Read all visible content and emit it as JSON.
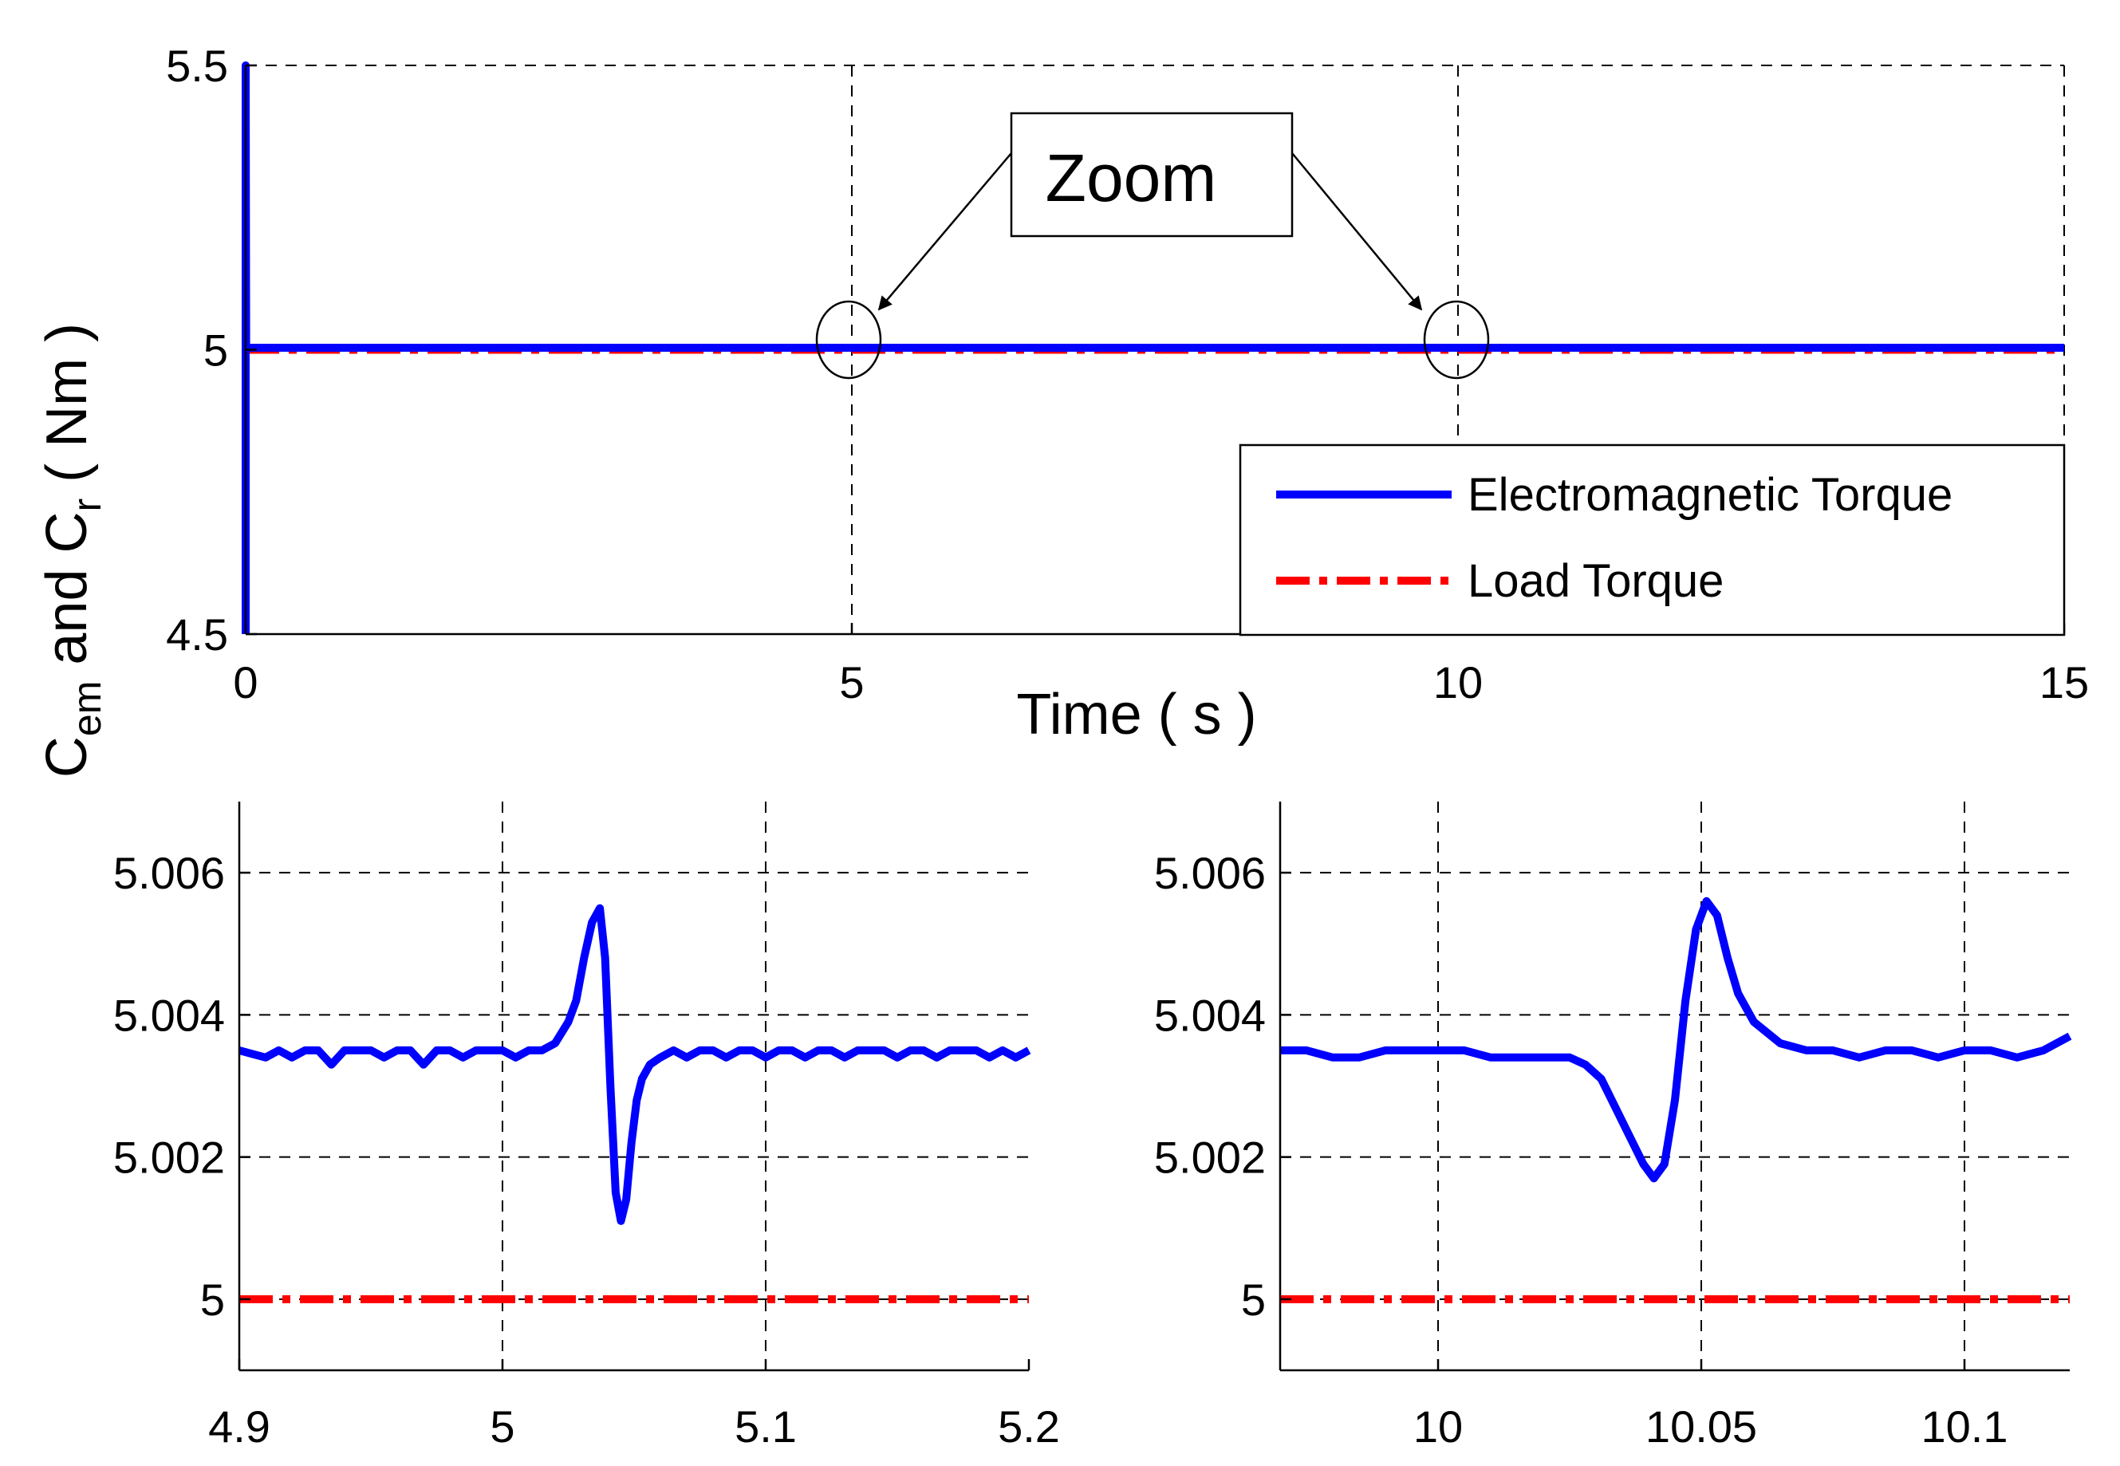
{
  "ylabel_parts": {
    "c1": "C",
    "sub1": "em",
    "and": " and C",
    "sub2": "r",
    "unit": " ( Nm )"
  },
  "chart_data": [
    {
      "type": "line",
      "xlabel": "Time ( s )",
      "ylabel": "C_em and C_r ( Nm )",
      "xlim": [
        0,
        15
      ],
      "ylim": [
        4.5,
        5.5
      ],
      "xticks": [
        0,
        5,
        10,
        15
      ],
      "xticklabels": [
        "0",
        "5",
        "10",
        "15"
      ],
      "yticks": [
        4.5,
        5,
        5.5
      ],
      "yticklabels": [
        "4.5",
        "5",
        "5.5"
      ],
      "grid": true,
      "legend_position": "bottom-right",
      "series": [
        {
          "name": "Electromagnetic Torque",
          "color": "#0000ff",
          "style": "solid",
          "x": [
            0,
            0,
            0.004,
            15
          ],
          "y": [
            4.5,
            5.5,
            5.0035,
            5.0035
          ]
        },
        {
          "name": "Load Torque",
          "color": "#ff0000",
          "style": "dash-dot",
          "x": [
            0,
            15
          ],
          "y": [
            5,
            5
          ]
        }
      ],
      "annotation": {
        "text": "Zoom",
        "targets": [
          [
            5,
            5
          ],
          [
            10,
            5
          ]
        ]
      }
    },
    {
      "type": "line",
      "xlim": [
        4.9,
        5.2
      ],
      "ylim": [
        4.999,
        5.007
      ],
      "xticks": [
        4.9,
        5,
        5.1,
        5.2
      ],
      "xticklabels": [
        "4.9",
        "5",
        "5.1",
        "5.2"
      ],
      "yticks": [
        5,
        5.002,
        5.004,
        5.006
      ],
      "yticklabels": [
        "5",
        "5.002",
        "5.004",
        "5.006"
      ],
      "grid": true,
      "series": [
        {
          "name": "Electromagnetic Torque",
          "color": "#0000ff",
          "style": "solid",
          "x": [
            4.9,
            4.905,
            4.91,
            4.915,
            4.92,
            4.925,
            4.93,
            4.935,
            4.94,
            4.945,
            4.95,
            4.955,
            4.96,
            4.965,
            4.97,
            4.975,
            4.98,
            4.985,
            4.99,
            4.995,
            5.0,
            5.005,
            5.01,
            5.015,
            5.02,
            5.025,
            5.028,
            5.031,
            5.034,
            5.037,
            5.039,
            5.041,
            5.043,
            5.045,
            5.047,
            5.049,
            5.051,
            5.053,
            5.056,
            5.06,
            5.065,
            5.07,
            5.075,
            5.08,
            5.085,
            5.09,
            5.095,
            5.1,
            5.105,
            5.11,
            5.115,
            5.12,
            5.125,
            5.13,
            5.135,
            5.14,
            5.145,
            5.15,
            5.155,
            5.16,
            5.165,
            5.17,
            5.175,
            5.18,
            5.185,
            5.19,
            5.195,
            5.2
          ],
          "y": [
            5.0035,
            5.00345,
            5.0034,
            5.0035,
            5.0034,
            5.0035,
            5.0035,
            5.0033,
            5.0035,
            5.0035,
            5.0035,
            5.0034,
            5.0035,
            5.0035,
            5.0033,
            5.0035,
            5.0035,
            5.0034,
            5.0035,
            5.0035,
            5.0035,
            5.0034,
            5.0035,
            5.0035,
            5.0036,
            5.0039,
            5.0042,
            5.0048,
            5.0053,
            5.0055,
            5.0048,
            5.003,
            5.0015,
            5.0011,
            5.0014,
            5.0022,
            5.0028,
            5.0031,
            5.0033,
            5.0034,
            5.0035,
            5.0034,
            5.0035,
            5.0035,
            5.0034,
            5.0035,
            5.0035,
            5.0034,
            5.0035,
            5.0035,
            5.0034,
            5.0035,
            5.0035,
            5.0034,
            5.0035,
            5.0035,
            5.0035,
            5.0034,
            5.0035,
            5.0035,
            5.0034,
            5.0035,
            5.0035,
            5.0035,
            5.0034,
            5.0035,
            5.0034,
            5.0035
          ]
        },
        {
          "name": "Load Torque",
          "color": "#ff0000",
          "style": "dash-dot",
          "x": [
            4.9,
            5.2
          ],
          "y": [
            5,
            5
          ]
        }
      ]
    },
    {
      "type": "line",
      "xlim": [
        9.97,
        10.12
      ],
      "ylim": [
        4.999,
        5.007
      ],
      "xticks": [
        10,
        10.05,
        10.1
      ],
      "xticklabels": [
        "10",
        "10.05",
        "10.1"
      ],
      "yticks": [
        5,
        5.002,
        5.004,
        5.006
      ],
      "yticklabels": [
        "5",
        "5.002",
        "5.004",
        "5.006"
      ],
      "grid": true,
      "series": [
        {
          "name": "Electromagnetic Torque",
          "color": "#0000ff",
          "style": "solid",
          "x": [
            9.97,
            9.975,
            9.98,
            9.985,
            9.99,
            9.995,
            10.0,
            10.005,
            10.01,
            10.015,
            10.02,
            10.025,
            10.028,
            10.031,
            10.033,
            10.035,
            10.037,
            10.039,
            10.041,
            10.043,
            10.045,
            10.047,
            10.049,
            10.051,
            10.053,
            10.055,
            10.057,
            10.06,
            10.065,
            10.07,
            10.075,
            10.08,
            10.085,
            10.09,
            10.095,
            10.1,
            10.105,
            10.11,
            10.115,
            10.12
          ],
          "y": [
            5.0035,
            5.0035,
            5.0034,
            5.0034,
            5.0035,
            5.0035,
            5.0035,
            5.0035,
            5.0034,
            5.0034,
            5.0034,
            5.0034,
            5.0033,
            5.0031,
            5.0028,
            5.0025,
            5.0022,
            5.0019,
            5.0017,
            5.0019,
            5.0028,
            5.0042,
            5.0052,
            5.0056,
            5.0054,
            5.0048,
            5.0043,
            5.0039,
            5.0036,
            5.0035,
            5.0035,
            5.0034,
            5.0035,
            5.0035,
            5.0034,
            5.0035,
            5.0035,
            5.0034,
            5.0035,
            5.0037
          ]
        },
        {
          "name": "Load Torque",
          "color": "#ff0000",
          "style": "dash-dot",
          "x": [
            9.97,
            10.12
          ],
          "y": [
            5,
            5
          ]
        }
      ]
    }
  ]
}
